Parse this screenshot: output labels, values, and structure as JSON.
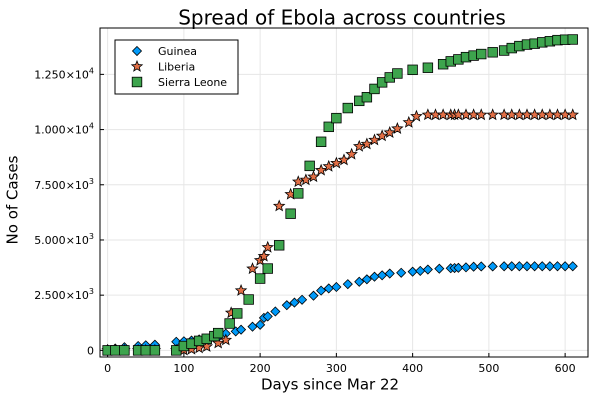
{
  "chart_data": {
    "type": "scatter",
    "title": "Spread of Ebola across countries",
    "xlabel": "Days since Mar 22",
    "ylabel": "No of Cases",
    "xlim": [
      -10,
      630
    ],
    "ylim": [
      -300,
      14600
    ],
    "grid": true,
    "legend_position": "top-left",
    "x_ticks": [
      {
        "value": 0,
        "label": "0"
      },
      {
        "value": 100,
        "label": "100"
      },
      {
        "value": 200,
        "label": "200"
      },
      {
        "value": 300,
        "label": "300"
      },
      {
        "value": 400,
        "label": "400"
      },
      {
        "value": 500,
        "label": "500"
      },
      {
        "value": 600,
        "label": "600"
      }
    ],
    "y_ticks": [
      {
        "value": 0,
        "label": "0"
      },
      {
        "value": 2500,
        "mantissa": "2.500",
        "exponent": "3"
      },
      {
        "value": 5000,
        "mantissa": "5.000",
        "exponent": "3"
      },
      {
        "value": 7500,
        "mantissa": "7.500",
        "exponent": "3"
      },
      {
        "value": 10000,
        "mantissa": "1.000",
        "exponent": "4"
      },
      {
        "value": 12500,
        "mantissa": "1.250",
        "exponent": "4"
      }
    ],
    "series": [
      {
        "name": "Guinea",
        "marker": "diamond",
        "color": "#009af9",
        "points": [
          [
            0,
            49
          ],
          [
            10,
            86
          ],
          [
            22,
            143
          ],
          [
            40,
            197
          ],
          [
            50,
            231
          ],
          [
            62,
            258
          ],
          [
            90,
            390
          ],
          [
            100,
            413
          ],
          [
            110,
            445
          ],
          [
            120,
            495
          ],
          [
            130,
            519
          ],
          [
            145,
            600
          ],
          [
            155,
            759
          ],
          [
            168,
            860
          ],
          [
            175,
            937
          ],
          [
            190,
            1074
          ],
          [
            200,
            1157
          ],
          [
            205,
            1472
          ],
          [
            210,
            1540
          ],
          [
            220,
            1761
          ],
          [
            235,
            2047
          ],
          [
            245,
            2164
          ],
          [
            255,
            2292
          ],
          [
            270,
            2478
          ],
          [
            280,
            2707
          ],
          [
            290,
            2806
          ],
          [
            300,
            2871
          ],
          [
            315,
            3000
          ],
          [
            330,
            3108
          ],
          [
            340,
            3219
          ],
          [
            350,
            3338
          ],
          [
            360,
            3400
          ],
          [
            370,
            3480
          ],
          [
            385,
            3515
          ],
          [
            400,
            3565
          ],
          [
            410,
            3600
          ],
          [
            420,
            3660
          ],
          [
            435,
            3700
          ],
          [
            450,
            3720
          ],
          [
            455,
            3730
          ],
          [
            460,
            3740
          ],
          [
            470,
            3760
          ],
          [
            480,
            3790
          ],
          [
            490,
            3800
          ],
          [
            505,
            3800
          ],
          [
            520,
            3810
          ],
          [
            530,
            3810
          ],
          [
            540,
            3810
          ],
          [
            550,
            3810
          ],
          [
            560,
            3810
          ],
          [
            570,
            3810
          ],
          [
            580,
            3810
          ],
          [
            590,
            3810
          ],
          [
            600,
            3810
          ],
          [
            610,
            3810
          ]
        ]
      },
      {
        "name": "Liberia",
        "marker": "star",
        "color": "#e26f46",
        "points": [
          [
            0,
            0
          ],
          [
            10,
            0
          ],
          [
            22,
            0
          ],
          [
            40,
            0
          ],
          [
            50,
            0
          ],
          [
            62,
            0
          ],
          [
            90,
            0
          ],
          [
            100,
            12
          ],
          [
            110,
            51
          ],
          [
            120,
            107
          ],
          [
            130,
            172
          ],
          [
            145,
            329
          ],
          [
            155,
            468
          ],
          [
            162,
            1698
          ],
          [
            175,
            2710
          ],
          [
            190,
            3696
          ],
          [
            200,
            4076
          ],
          [
            205,
            4262
          ],
          [
            210,
            4665
          ],
          [
            225,
            6535
          ],
          [
            240,
            7069
          ],
          [
            250,
            7635
          ],
          [
            260,
            7719
          ],
          [
            270,
            7862
          ],
          [
            280,
            8157
          ],
          [
            290,
            8331
          ],
          [
            300,
            8478
          ],
          [
            310,
            8622
          ],
          [
            320,
            8881
          ],
          [
            330,
            9238
          ],
          [
            340,
            9343
          ],
          [
            350,
            9526
          ],
          [
            360,
            9712
          ],
          [
            370,
            9862
          ],
          [
            380,
            10042
          ],
          [
            395,
            10322
          ],
          [
            405,
            10600
          ],
          [
            420,
            10666
          ],
          [
            430,
            10666
          ],
          [
            440,
            10666
          ],
          [
            450,
            10666
          ],
          [
            455,
            10666
          ],
          [
            460,
            10666
          ],
          [
            470,
            10666
          ],
          [
            480,
            10666
          ],
          [
            490,
            10666
          ],
          [
            505,
            10666
          ],
          [
            520,
            10666
          ],
          [
            530,
            10666
          ],
          [
            540,
            10666
          ],
          [
            550,
            10666
          ],
          [
            560,
            10666
          ],
          [
            570,
            10666
          ],
          [
            580,
            10666
          ],
          [
            590,
            10666
          ],
          [
            600,
            10666
          ],
          [
            610,
            10666
          ]
        ]
      },
      {
        "name": "Sierra Leone",
        "marker": "square",
        "color": "#3da44d",
        "points": [
          [
            0,
            0
          ],
          [
            10,
            0
          ],
          [
            22,
            0
          ],
          [
            40,
            0
          ],
          [
            50,
            0
          ],
          [
            62,
            0
          ],
          [
            90,
            0
          ],
          [
            100,
            197
          ],
          [
            110,
            305
          ],
          [
            120,
            430
          ],
          [
            130,
            525
          ],
          [
            140,
            646
          ],
          [
            145,
            781
          ],
          [
            160,
            1216
          ],
          [
            170,
            1673
          ],
          [
            185,
            2304
          ],
          [
            200,
            3252
          ],
          [
            210,
            3706
          ],
          [
            225,
            4759
          ],
          [
            240,
            6190
          ],
          [
            250,
            7109
          ],
          [
            265,
            8356
          ],
          [
            280,
            9446
          ],
          [
            290,
            10124
          ],
          [
            300,
            10518
          ],
          [
            315,
            10974
          ],
          [
            330,
            11301
          ],
          [
            340,
            11466
          ],
          [
            350,
            11841
          ],
          [
            360,
            12138
          ],
          [
            370,
            12362
          ],
          [
            380,
            12540
          ],
          [
            400,
            12706
          ],
          [
            420,
            12800
          ],
          [
            440,
            12960
          ],
          [
            450,
            13088
          ],
          [
            460,
            13178
          ],
          [
            470,
            13280
          ],
          [
            480,
            13350
          ],
          [
            490,
            13420
          ],
          [
            505,
            13500
          ],
          [
            520,
            13580
          ],
          [
            530,
            13690
          ],
          [
            540,
            13780
          ],
          [
            550,
            13850
          ],
          [
            560,
            13890
          ],
          [
            570,
            13950
          ],
          [
            580,
            14000
          ],
          [
            590,
            14050
          ],
          [
            600,
            14070
          ],
          [
            610,
            14080
          ]
        ]
      }
    ]
  }
}
